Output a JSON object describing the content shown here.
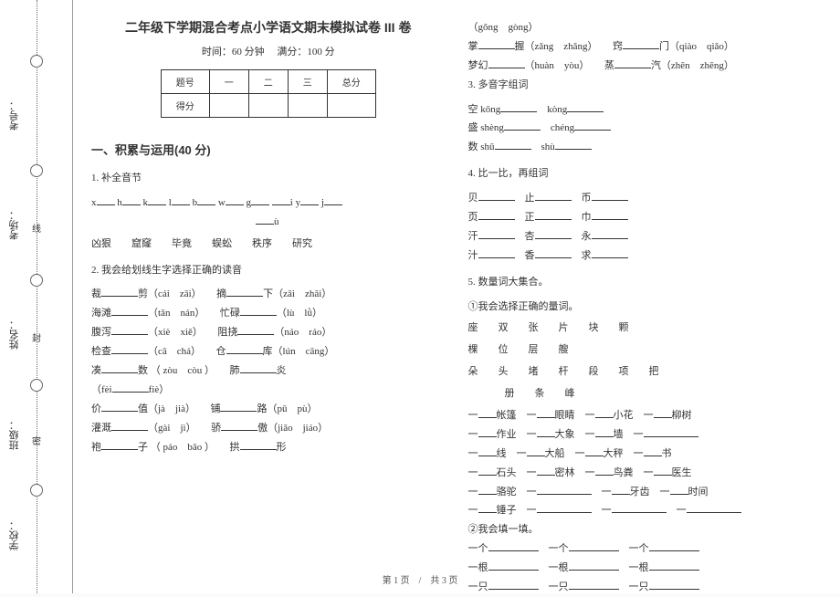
{
  "binding": {
    "labels": [
      "学校：",
      "班级：",
      "姓名：",
      "考场：",
      "考号："
    ],
    "cut_chars": [
      "密",
      "封",
      "线"
    ]
  },
  "header": {
    "title": "二年级下学期混合考点小学语文期末模拟试卷 III 卷",
    "time_label": "时间：60 分钟",
    "score_label": "满分：100 分"
  },
  "score_table": {
    "h1": "题号",
    "c1": "一",
    "c2": "二",
    "c3": "三",
    "c4": "总分",
    "h2": "得分"
  },
  "section1": "一、积累与运用(40 分)",
  "q1": {
    "title": "1. 补全音节",
    "letters": [
      "x",
      "h",
      "k",
      "l",
      "b",
      "w",
      "g",
      "i",
      "y",
      "j",
      "ù"
    ],
    "words": [
      "凶狠",
      "窟窿",
      "毕竟",
      "蜈蚣",
      "秩序",
      "研究"
    ]
  },
  "q2": {
    "title": "2. 我会给划线生字选择正确的读音",
    "lines": [
      {
        "t1": "裁",
        "t2": "剪（cái",
        "t3": "zāi）",
        "t4": "摘",
        "t5": "下（zāi",
        "t6": "zhāi）"
      },
      {
        "t1": "海滩",
        "t2": "（tān",
        "t3": "nán）",
        "t4": "忙碌",
        "t5": "（lù",
        "t6": "lǜ）"
      },
      {
        "t1": "腹泻",
        "t2": "（xiè",
        "t3": "xiě）",
        "t4": "阻挠",
        "t5": "（náo",
        "t6": "ráo）"
      },
      {
        "t1": "检查",
        "t2": "（cā",
        "t3": "chá）",
        "t4": "仓",
        "t5": "库（lún",
        "t6": "cāng）"
      },
      {
        "t1": "凑",
        "t2": "数 （ zòu",
        "t3": "còu ）",
        "t4": "肺",
        "t5": "炎",
        "t6": ""
      },
      {
        "t1": "（fèi",
        "t2": "fiè）",
        "t3": "",
        "t4": "",
        "t5": "",
        "t6": ""
      },
      {
        "t1": "价",
        "t2": "值（jà",
        "t3": "jià）",
        "t4": "铺",
        "t5": "路（pū",
        "t6": "pù）"
      },
      {
        "t1": "灌溉",
        "t2": "（gài",
        "t3": "jì）",
        "t4": "骄",
        "t5": "傲（jiāo",
        "t6": "jiáo）"
      },
      {
        "t1": "袍",
        "t2": "子 （ páo",
        "t3": "bāo ）",
        "t4": "拱",
        "t5": "形",
        "t6": ""
      }
    ],
    "line_tail": "（gǒng　gòng）",
    "extras": [
      {
        "t1": "掌",
        "t2": "握（zǎng",
        "t3": "zhǎng）",
        "t4": "窍",
        "t5": "门（qiào",
        "t6": "qiǎo）"
      },
      {
        "t1": "梦幻",
        "t2": "（huàn",
        "t3": "yòu）",
        "t4": "蒸",
        "t5": "汽（zhēn",
        "t6": "zhēng）"
      }
    ]
  },
  "q3": {
    "title": "3. 多音字组词",
    "rows": [
      {
        "a": "空 kōng",
        "b": "kòng"
      },
      {
        "a": "盛 shèng",
        "b": "chéng"
      },
      {
        "a": "数 shū",
        "b": "shù"
      }
    ]
  },
  "q4": {
    "title": "4. 比一比，再组词",
    "pairs": [
      [
        "贝",
        "止",
        "币"
      ],
      [
        "页",
        "正",
        "巾"
      ],
      [
        "汗",
        "杏",
        "永"
      ],
      [
        "汁",
        "香",
        "求"
      ]
    ]
  },
  "q5": {
    "title": "5. 数量词大集合。",
    "sub1": "①我会选择正确的量词。",
    "words_row1": [
      "座",
      "双",
      "张",
      "片",
      "块",
      "颗"
    ],
    "words_row2": [
      "棵",
      "位",
      "层",
      "艘"
    ],
    "words_row3": [
      "朵",
      "头",
      "堵",
      "杆",
      "段",
      "项",
      "把"
    ],
    "words_row4": [
      "册",
      "条",
      "峰"
    ],
    "fill_rows": [
      [
        "帐篷",
        "眼睛",
        "小花",
        "柳树"
      ],
      [
        "作业",
        "大象",
        "墙",
        ""
      ],
      [
        "线",
        "大船",
        "大秤",
        "书"
      ],
      [
        "石头",
        "密林",
        "鸟粪",
        "医生"
      ],
      [
        "骆驼",
        "",
        "牙齿",
        "时间"
      ],
      [
        "锤子",
        "",
        "",
        ""
      ]
    ],
    "sub2": "②我会填一填。",
    "fill2": [
      [
        "一个",
        "一个",
        "一个"
      ],
      [
        "一根",
        "一根",
        "一根"
      ],
      [
        "一只",
        "一只",
        "一只"
      ]
    ]
  },
  "footer": "第 1 页　/　共 3 页"
}
